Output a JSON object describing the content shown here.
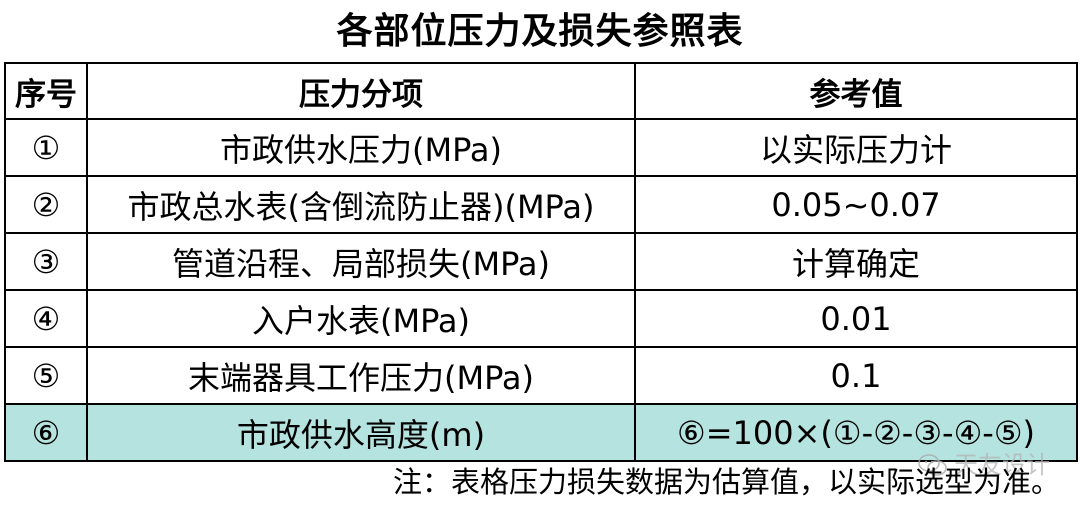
{
  "title": "各部位压力及损失参照表",
  "table": {
    "headers": [
      "序号",
      "压力分项",
      "参考值"
    ],
    "rows": [
      {
        "index": "①",
        "item": "市政供水压力(MPa)",
        "value": "以实际压力计"
      },
      {
        "index": "②",
        "item": "市政总水表(含倒流防止器)(MPa)",
        "value": "0.05~0.07"
      },
      {
        "index": "③",
        "item": "管道沿程、局部损失(MPa)",
        "value": "计算确定"
      },
      {
        "index": "④",
        "item": "入户水表(MPa)",
        "value": "0.01"
      },
      {
        "index": "⑤",
        "item": "末端器具工作压力(MPa)",
        "value": "0.1"
      },
      {
        "index": "⑥",
        "item": "市政供水高度(m)",
        "value": "⑥=100×(①-②-③-④-⑤)"
      }
    ],
    "highlight_color": "#b5e3df"
  },
  "note": "注：表格压力损失数据为估算值，以实际选型为准。",
  "watermark": {
    "icon": "wechat-icon",
    "text": "天友设计"
  }
}
